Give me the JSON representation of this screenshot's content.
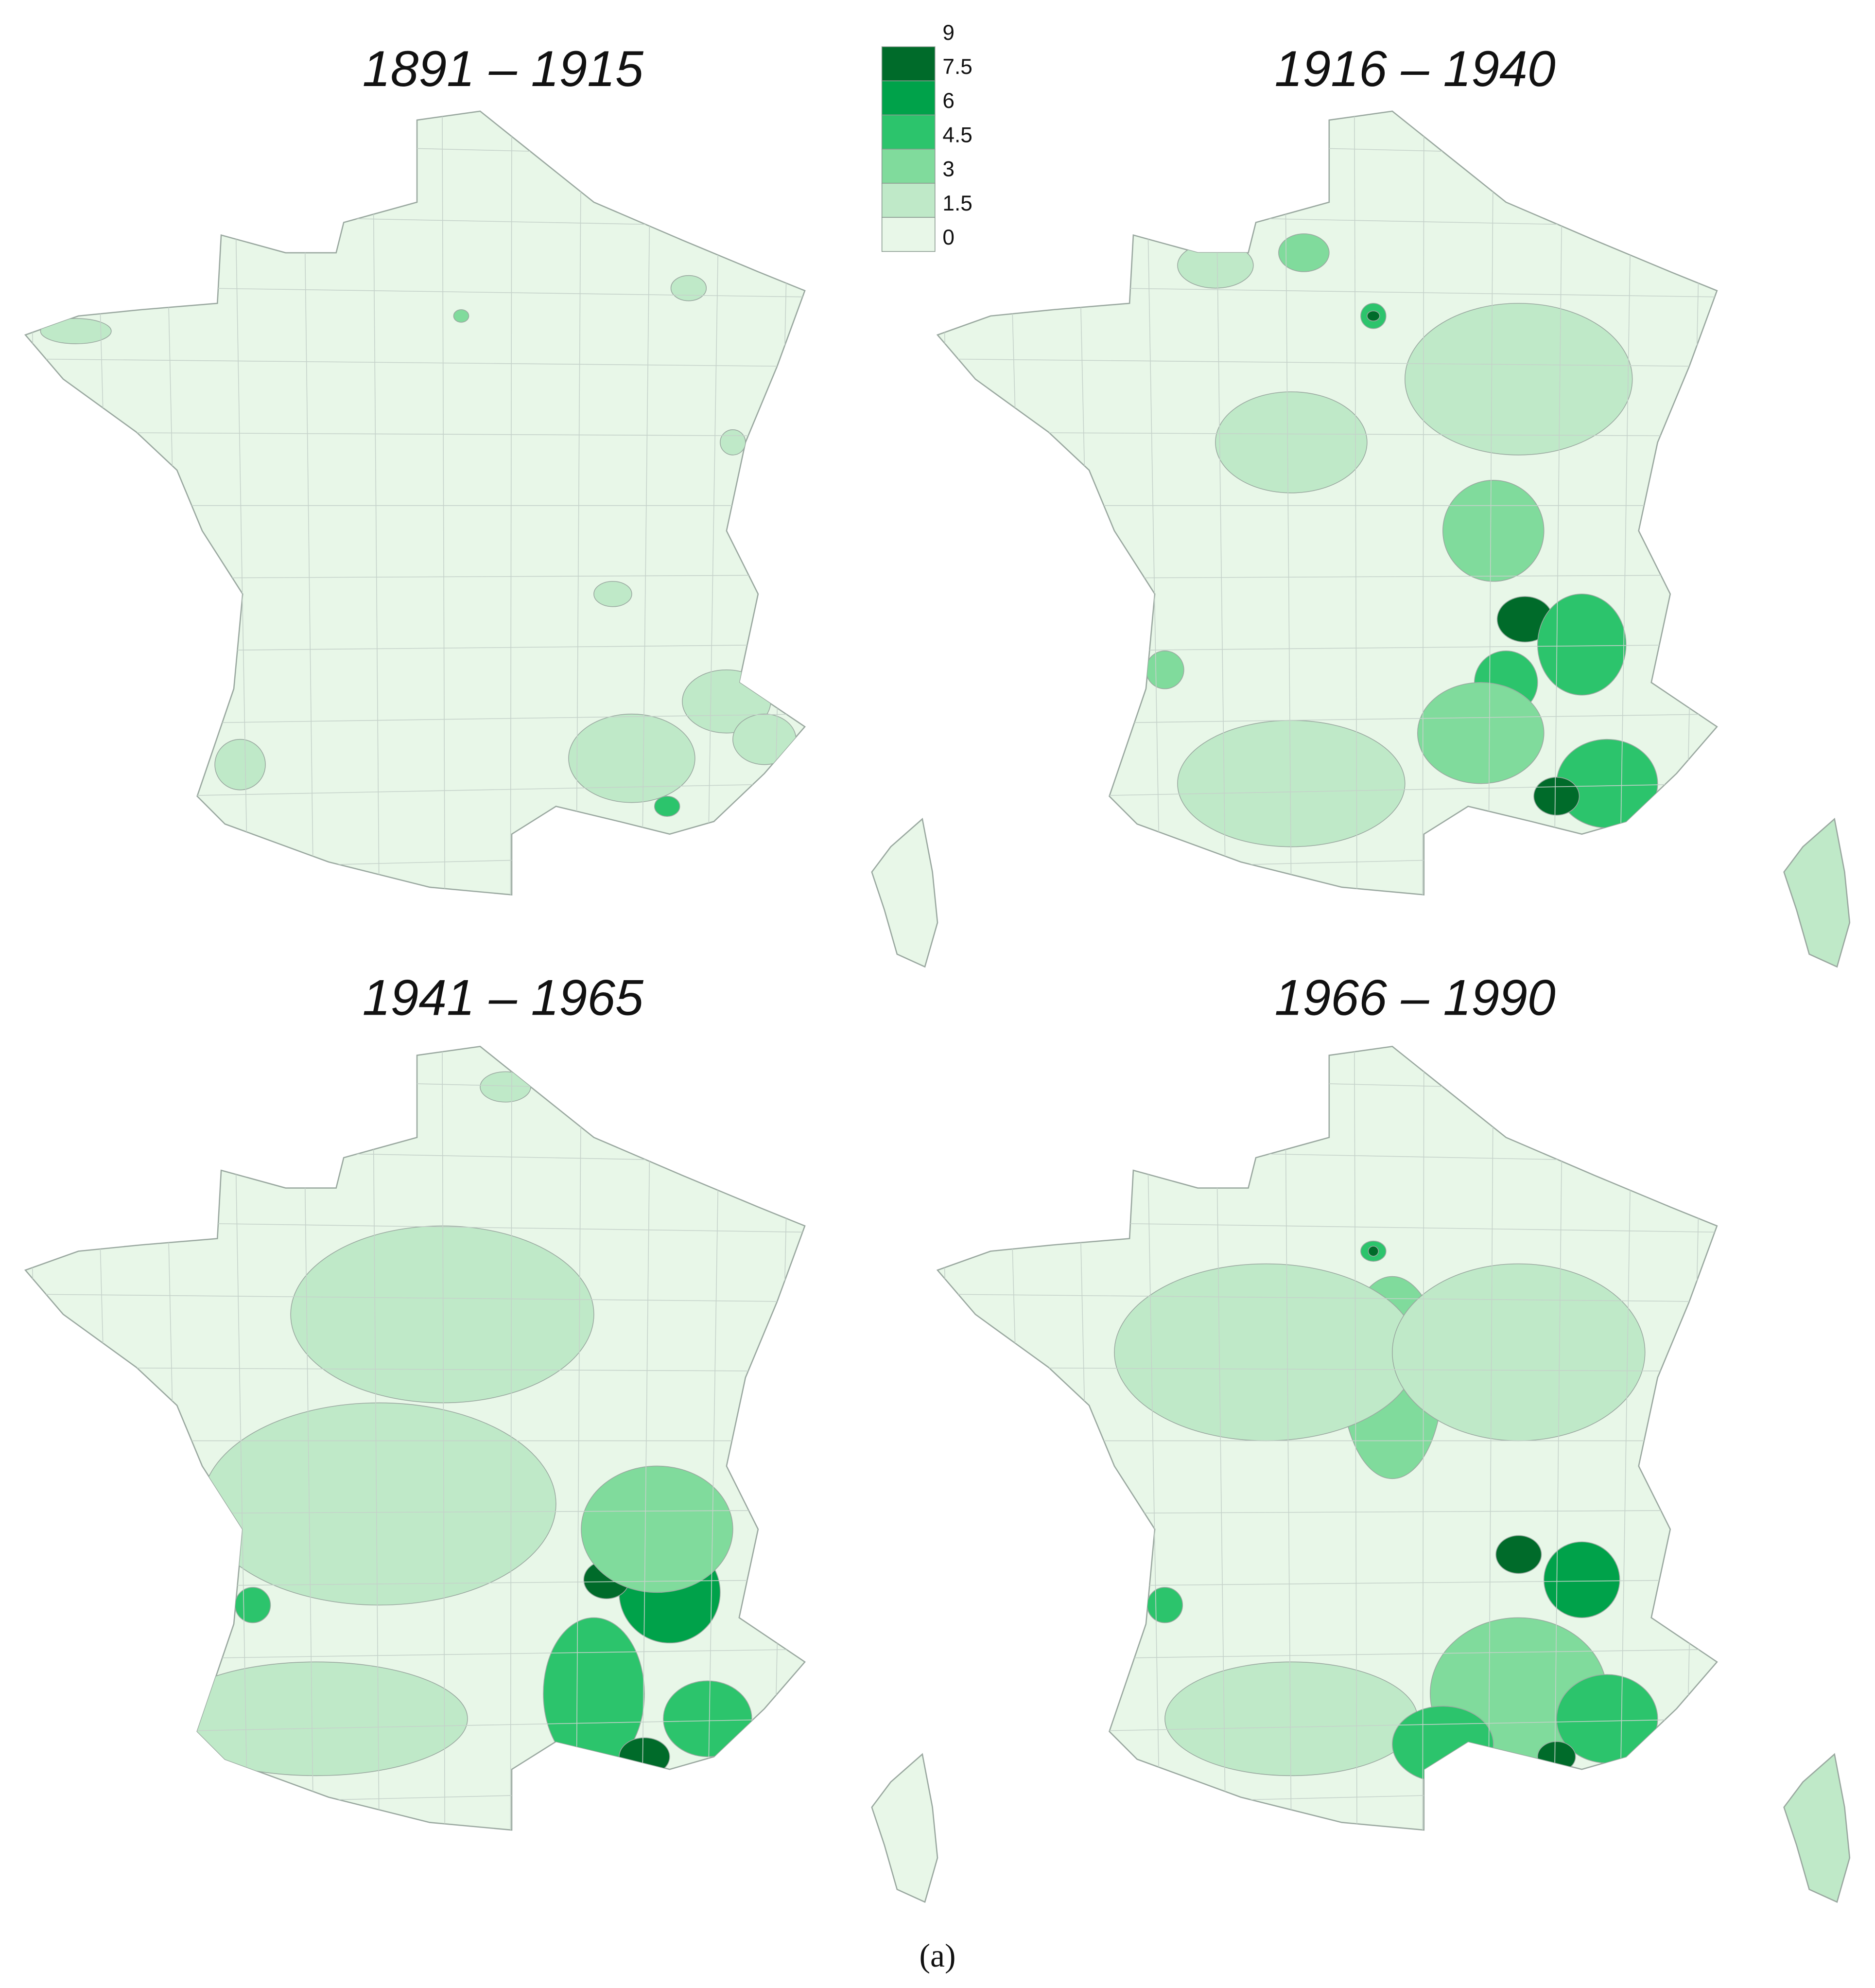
{
  "titles": [
    "1891 – 1915",
    "1916 – 1940",
    "1941 – 1965",
    "1966 – 1990"
  ],
  "legend": {
    "labels": [
      9,
      7.5,
      6,
      4.5,
      3,
      1.5,
      0
    ],
    "colors": [
      "#006b2a",
      "#00a24a",
      "#2cc46c",
      "#80db9c",
      "#bfe9c8",
      "#e8f7e8"
    ]
  },
  "caption": "(a)"
}
